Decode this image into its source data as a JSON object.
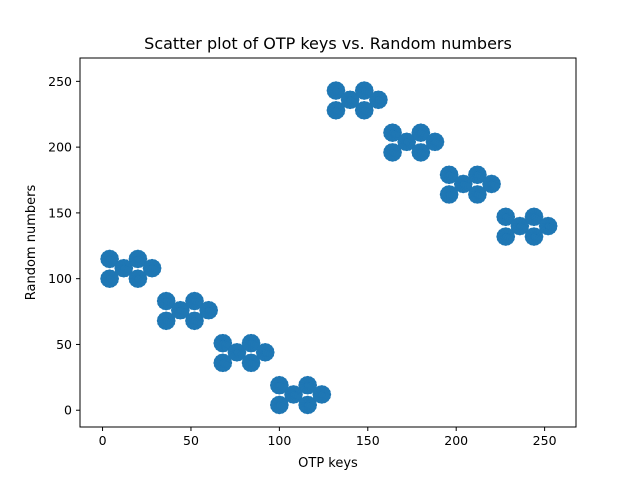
{
  "chart_data": {
    "type": "scatter",
    "title": "Scatter plot of OTP keys vs. Random numbers",
    "xlabel": "OTP keys",
    "ylabel": "Random numbers",
    "xlim": [
      -12.75,
      267.75
    ],
    "ylim": [
      -12.75,
      267.75
    ],
    "xticks": [
      0,
      50,
      100,
      150,
      200,
      250
    ],
    "yticks": [
      0,
      50,
      100,
      150,
      200,
      250
    ],
    "grid": false,
    "legend": "none",
    "marker_color": "#1f77b4",
    "cluster_points": {
      "note_x": [
        0,
        1,
        2,
        3,
        4,
        5,
        6,
        7,
        8,
        9,
        10,
        11,
        12,
        13,
        14,
        15,
        16,
        17,
        18,
        19,
        20,
        21,
        22,
        23,
        24,
        25,
        26,
        27,
        28,
        29,
        30,
        31
      ],
      "y_offsets": [
        0,
        1,
        2,
        3,
        4,
        5,
        6,
        7,
        8,
        9,
        10,
        11,
        12,
        13,
        14,
        15,
        16,
        17,
        18,
        19,
        20,
        21,
        22,
        23,
        24,
        25,
        26,
        27,
        28,
        29,
        30,
        31
      ]
    },
    "series": [
      {
        "x_range": [
          0,
          31
        ],
        "y_base": 100,
        "clusters": [
          {
            "x_start": 0,
            "y": [
              100,
              101,
              114,
              115
            ]
          },
          {
            "x_start": 8,
            "y": [
              106,
              107,
              108,
              109
            ]
          },
          {
            "x_start": 16,
            "y": [
              100,
              101,
              114,
              115
            ]
          },
          {
            "x_start": 24,
            "y": [
              106,
              107,
              108,
              109
            ]
          }
        ]
      }
    ],
    "blocks": [
      {
        "x0": 0,
        "x1": 31,
        "y_base": 100,
        "up": 1
      },
      {
        "x0": 32,
        "x1": 63,
        "y_base": 68,
        "up": 1
      },
      {
        "x0": 64,
        "x1": 95,
        "y_base": 36,
        "up": 1
      },
      {
        "x0": 96,
        "x1": 127,
        "y_base": 4,
        "up": 1
      },
      {
        "x0": 128,
        "x1": 159,
        "y_base": 228,
        "up": 1
      },
      {
        "x0": 160,
        "x1": 191,
        "y_base": 196,
        "up": 1
      },
      {
        "x0": 192,
        "x1": 223,
        "y_base": 164,
        "up": 1
      },
      {
        "x0": 224,
        "x1": 255,
        "y_base": 132,
        "up": 1
      }
    ]
  }
}
